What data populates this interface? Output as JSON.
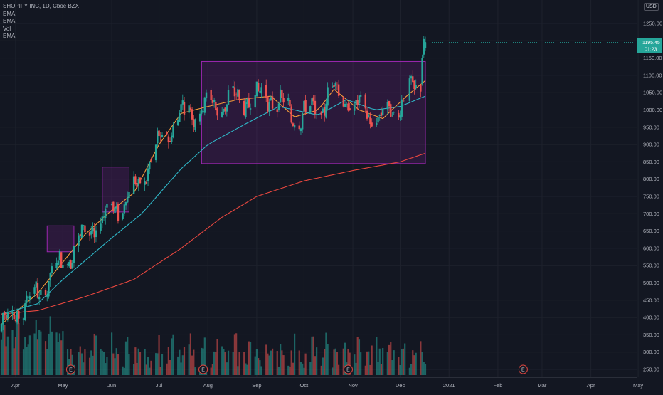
{
  "legend": {
    "title": "SHOPIFY INC, 1D, Cboe BZX",
    "lines": [
      "EMA",
      "EMA",
      "Vol",
      "EMA"
    ]
  },
  "currency": "USD",
  "last_price_tag": {
    "price": "1195.45",
    "countdown": "01:23",
    "color": "#26a69a"
  },
  "colors": {
    "background": "#131722",
    "up": "#26a69a",
    "down": "#ef5350",
    "ema_fast": "#f59b3a",
    "ema_mid": "#2fb7c7",
    "ema_slow": "#e8473f",
    "box_stroke": "#9c27b0",
    "box_fill": "rgba(156,39,176,0.18)"
  },
  "chart_data": {
    "type": "candlestick",
    "title": "SHOPIFY INC, 1D, Cboe BZX",
    "y_ticks": [
      250,
      300,
      350,
      400,
      450,
      500,
      550,
      600,
      650,
      700,
      750,
      800,
      850,
      900,
      950,
      1000,
      1050,
      1100,
      1150,
      1200,
      1250
    ],
    "y_tick_labels": [
      "250.00",
      "300.00",
      "350.00",
      "400.00",
      "450.00",
      "500.00",
      "550.00",
      "600.00",
      "650.00",
      "700.00",
      "750.00",
      "800.00",
      "850.00",
      "900.00",
      "950.00",
      "1000.00",
      "1050.00",
      "1100.00",
      "1150.00",
      "1200.00",
      "1250.00"
    ],
    "x_tick_labels": [
      "Apr",
      "May",
      "Jun",
      "Jul",
      "Aug",
      "Sep",
      "Oct",
      "Nov",
      "Dec",
      "2021",
      "Feb",
      "Mar",
      "Apr",
      "May"
    ],
    "earnings_marker": "E",
    "earnings_dates": [
      "2020-05-06",
      "2020-07-29",
      "2020-10-29",
      "2021-02-17"
    ],
    "consolidation_boxes": [
      {
        "start": "2020-04-21",
        "end": "2020-05-08",
        "low": 590,
        "high": 665
      },
      {
        "start": "2020-05-26",
        "end": "2020-06-12",
        "low": 705,
        "high": 835
      },
      {
        "start": "2020-07-28",
        "end": "2020-12-17",
        "low": 845,
        "high": 1140
      }
    ],
    "series": [
      {
        "name": "EMA",
        "anchors": [
          [
            "2020-03-23",
            380
          ],
          [
            "2020-04-15",
            470
          ],
          [
            "2020-05-01",
            560
          ],
          [
            "2020-05-15",
            640
          ],
          [
            "2020-06-01",
            710
          ],
          [
            "2020-06-15",
            760
          ],
          [
            "2020-07-01",
            900
          ],
          [
            "2020-07-15",
            990
          ],
          [
            "2020-08-01",
            1010
          ],
          [
            "2020-08-20",
            1030
          ],
          [
            "2020-09-10",
            1040
          ],
          [
            "2020-09-25",
            980
          ],
          [
            "2020-10-10",
            1000
          ],
          [
            "2020-10-20",
            1060
          ],
          [
            "2020-11-05",
            1000
          ],
          [
            "2020-11-20",
            975
          ],
          [
            "2020-12-05",
            1040
          ],
          [
            "2020-12-17",
            1085
          ]
        ]
      },
      {
        "name": "EMA",
        "anchors": [
          [
            "2020-03-23",
            410
          ],
          [
            "2020-04-15",
            440
          ],
          [
            "2020-05-01",
            510
          ],
          [
            "2020-06-01",
            630
          ],
          [
            "2020-06-20",
            700
          ],
          [
            "2020-07-15",
            830
          ],
          [
            "2020-08-01",
            900
          ],
          [
            "2020-08-25",
            960
          ],
          [
            "2020-09-15",
            1010
          ],
          [
            "2020-10-10",
            985
          ],
          [
            "2020-10-28",
            1030
          ],
          [
            "2020-11-15",
            1000
          ],
          [
            "2020-12-01",
            1010
          ],
          [
            "2020-12-17",
            1040
          ]
        ]
      },
      {
        "name": "EMA",
        "anchors": [
          [
            "2020-03-23",
            410
          ],
          [
            "2020-04-15",
            420
          ],
          [
            "2020-05-15",
            460
          ],
          [
            "2020-06-15",
            510
          ],
          [
            "2020-07-15",
            600
          ],
          [
            "2020-08-10",
            690
          ],
          [
            "2020-09-01",
            750
          ],
          [
            "2020-10-01",
            795
          ],
          [
            "2020-11-01",
            825
          ],
          [
            "2020-12-01",
            850
          ],
          [
            "2020-12-17",
            875
          ]
        ]
      }
    ]
  }
}
